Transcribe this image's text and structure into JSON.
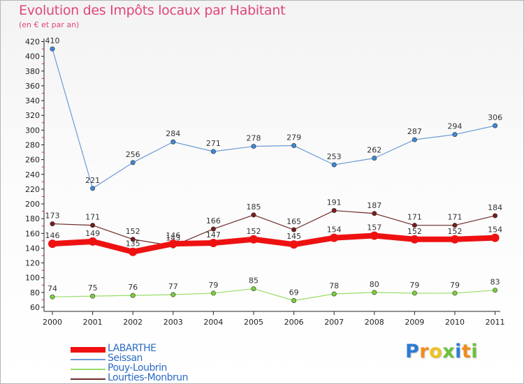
{
  "title": "Evolution des Impôts locaux par Habitant",
  "subtitle": "(en € et par an)",
  "logo": {
    "text": "Proxiti",
    "letters": [
      {
        "ch": "P",
        "color": "#2e7bd6"
      },
      {
        "ch": "r",
        "color": "#f28c1e"
      },
      {
        "ch": "o",
        "color": "#f2c21e"
      },
      {
        "ch": "x",
        "color": "#6cc13a"
      },
      {
        "ch": "i",
        "color": "#2e7bd6"
      },
      {
        "ch": "t",
        "color": "#f28c1e"
      },
      {
        "ch": "i",
        "color": "#6cc13a"
      }
    ]
  },
  "legend": [
    {
      "name": "LABARTHE",
      "color": "#ee1111"
    },
    {
      "name": "Seissan",
      "color": "#6a9bd6"
    },
    {
      "name": "Pouy-Loubrin",
      "color": "#99dd66"
    },
    {
      "name": "Lourties-Monbrun",
      "color": "#6e2a2a"
    }
  ],
  "chart_data": {
    "type": "line",
    "title": "Evolution des Impôts locaux par Habitant",
    "subtitle": "(en € et par an)",
    "xlabel": "",
    "ylabel": "",
    "x": [
      "2000",
      "2001",
      "2002",
      "2003",
      "2004",
      "2005",
      "2006",
      "2007",
      "2008",
      "2009",
      "2010",
      "2011"
    ],
    "ylim": [
      60,
      420
    ],
    "yticks": [
      60,
      80,
      100,
      120,
      140,
      160,
      180,
      200,
      220,
      240,
      260,
      280,
      300,
      320,
      340,
      360,
      380,
      400,
      420
    ],
    "grid": false,
    "legend_position": "bottom-left",
    "series": [
      {
        "name": "Seissan",
        "color": "#6a9bd6",
        "marker": "#3e88d8",
        "values": [
          410,
          221,
          256,
          284,
          271,
          278,
          279,
          253,
          262,
          287,
          294,
          306
        ]
      },
      {
        "name": "Lourties-Monbrun",
        "color": "#6e2a2a",
        "marker": "#7a1c1c",
        "values": [
          173,
          171,
          152,
          143,
          166,
          185,
          165,
          191,
          187,
          171,
          171,
          184
        ]
      },
      {
        "name": "Pouy-Loubrin",
        "color": "#99dd66",
        "marker": "#7ccf3a",
        "values": [
          74,
          75,
          76,
          77,
          79,
          85,
          69,
          78,
          80,
          79,
          79,
          83
        ]
      },
      {
        "name": "LABARTHE",
        "color": "#ee1111",
        "marker": "#ee1111",
        "values": [
          146,
          149,
          135,
          146,
          147,
          152,
          145,
          154,
          157,
          152,
          152,
          154
        ]
      }
    ]
  }
}
